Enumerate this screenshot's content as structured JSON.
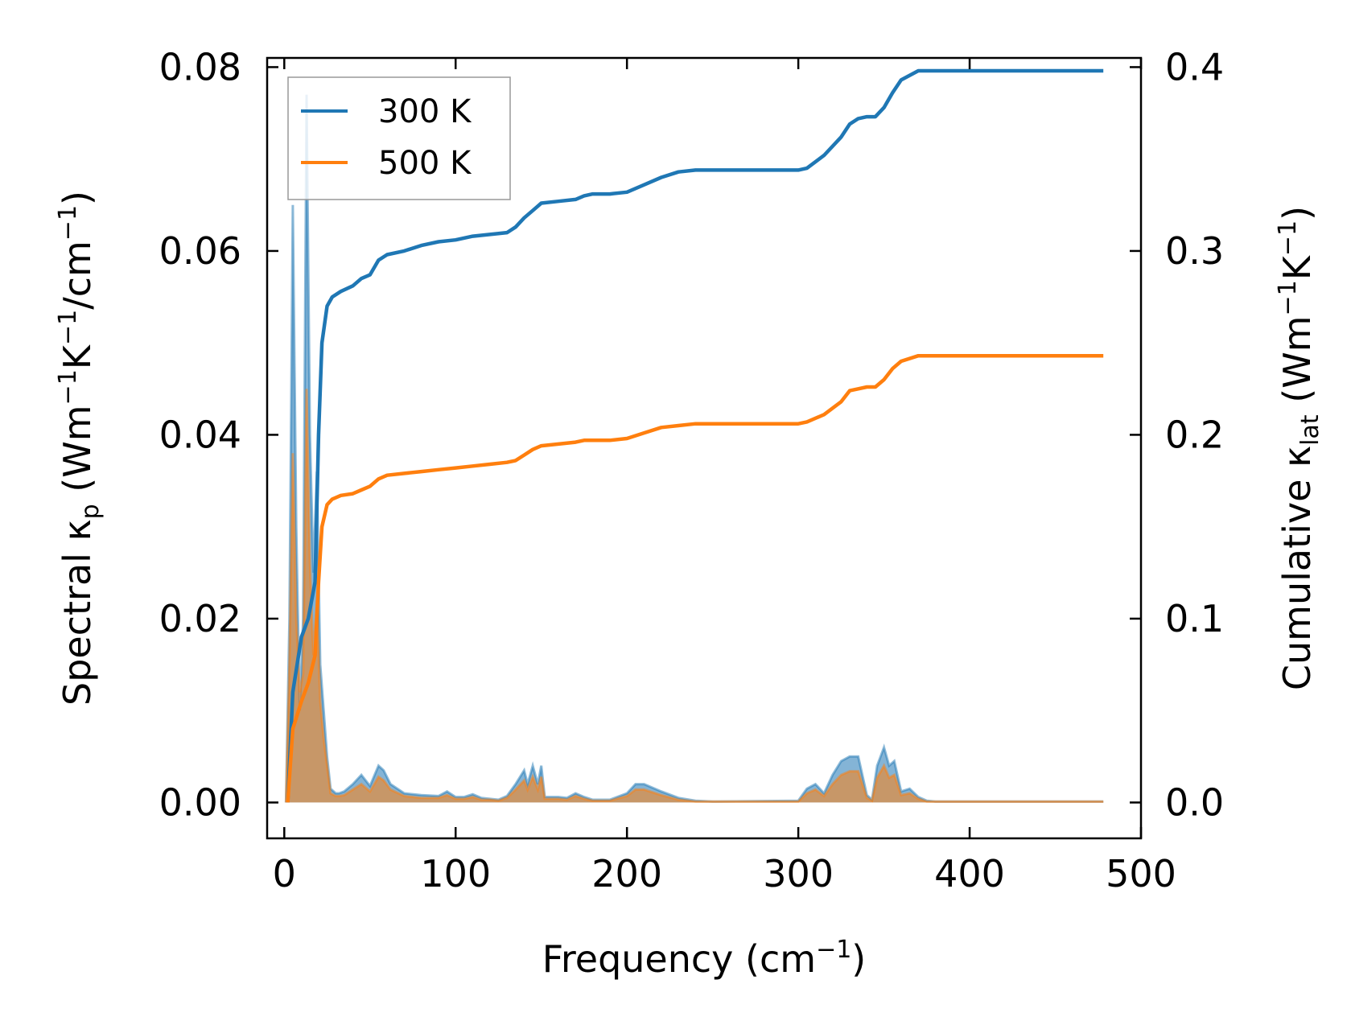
{
  "chart_data": {
    "type": "line",
    "title": "",
    "xlabel_main": "Frequency (cm",
    "xlabel_sup": "−1",
    "xlabel_end": ")",
    "ylabel_left": {
      "main": "Spectral κ",
      "sub": "p",
      "rest1": " (Wm",
      "sup1": "−1",
      "rest2": "K",
      "sup2": "−1",
      "rest3": "/cm",
      "sup3": "−1",
      "rest4": ")"
    },
    "ylabel_right": {
      "main": "Cumulative κ",
      "sub": "lat",
      "rest1": " (Wm",
      "sup1": "−1",
      "rest2": "K",
      "sup2": "−1",
      "rest3": ")"
    },
    "xlim": [
      -10,
      500
    ],
    "ylim_left": [
      -0.0039,
      0.081
    ],
    "ylim_right": [
      -0.0195,
      0.405
    ],
    "x_ticks": [
      0,
      100,
      200,
      300,
      400,
      500
    ],
    "x_tick_labels": [
      "0",
      "100",
      "200",
      "300",
      "400",
      "500"
    ],
    "y_left_ticks": [
      0,
      0.02,
      0.04,
      0.06,
      0.08
    ],
    "y_left_tick_labels": [
      "0.00",
      "0.02",
      "0.04",
      "0.06",
      "0.08"
    ],
    "y_right_ticks": [
      0,
      0.1,
      0.2,
      0.3,
      0.4
    ],
    "y_right_tick_labels": [
      "0.0",
      "0.1",
      "0.2",
      "0.3",
      "0.4"
    ],
    "legend": {
      "position": "upper-left",
      "entries": [
        {
          "name": "300 K",
          "color": "#1f77b4"
        },
        {
          "name": "500 K",
          "color": "#ff7f0e"
        }
      ]
    },
    "colors": {
      "series_300": "#1f77b4",
      "series_500": "#ff7f0e"
    },
    "series": [
      {
        "name": "300 K",
        "axis": "right",
        "kind": "cumulative",
        "color": "#1f77b4",
        "x": [
          2,
          5,
          10,
          14,
          18,
          20,
          22,
          25,
          28,
          33,
          40,
          45,
          50,
          55,
          60,
          70,
          80,
          90,
          100,
          110,
          120,
          130,
          135,
          140,
          145,
          150,
          160,
          170,
          175,
          180,
          190,
          200,
          210,
          220,
          230,
          240,
          250,
          260,
          280,
          300,
          305,
          315,
          325,
          330,
          335,
          340,
          345,
          350,
          355,
          360,
          370,
          380,
          400,
          450,
          478
        ],
        "y": [
          0.0,
          0.06,
          0.09,
          0.1,
          0.12,
          0.2,
          0.25,
          0.27,
          0.275,
          0.278,
          0.281,
          0.285,
          0.287,
          0.295,
          0.298,
          0.3,
          0.303,
          0.305,
          0.306,
          0.308,
          0.309,
          0.31,
          0.313,
          0.318,
          0.322,
          0.326,
          0.327,
          0.328,
          0.33,
          0.331,
          0.331,
          0.332,
          0.336,
          0.34,
          0.343,
          0.344,
          0.344,
          0.344,
          0.344,
          0.344,
          0.345,
          0.352,
          0.362,
          0.369,
          0.372,
          0.373,
          0.373,
          0.378,
          0.386,
          0.393,
          0.398,
          0.398,
          0.398,
          0.398,
          0.398
        ]
      },
      {
        "name": "500 K",
        "axis": "right",
        "kind": "cumulative",
        "color": "#ff7f0e",
        "x": [
          2,
          5,
          10,
          14,
          18,
          20,
          22,
          25,
          28,
          33,
          40,
          45,
          50,
          55,
          60,
          70,
          80,
          90,
          100,
          110,
          120,
          130,
          135,
          140,
          145,
          150,
          160,
          170,
          175,
          180,
          190,
          200,
          210,
          220,
          230,
          240,
          250,
          260,
          280,
          300,
          305,
          315,
          325,
          330,
          335,
          340,
          345,
          350,
          355,
          360,
          370,
          380,
          400,
          450,
          478
        ],
        "y": [
          0.0,
          0.04,
          0.055,
          0.065,
          0.08,
          0.12,
          0.15,
          0.162,
          0.165,
          0.167,
          0.168,
          0.17,
          0.172,
          0.176,
          0.178,
          0.179,
          0.18,
          0.181,
          0.182,
          0.183,
          0.184,
          0.185,
          0.186,
          0.189,
          0.192,
          0.194,
          0.195,
          0.196,
          0.197,
          0.197,
          0.197,
          0.198,
          0.201,
          0.204,
          0.205,
          0.206,
          0.206,
          0.206,
          0.206,
          0.206,
          0.207,
          0.211,
          0.218,
          0.224,
          0.225,
          0.226,
          0.226,
          0.23,
          0.236,
          0.24,
          0.243,
          0.243,
          0.243,
          0.243,
          0.243
        ]
      },
      {
        "name": "300 K",
        "axis": "left",
        "kind": "spectral",
        "color": "#1f77b4",
        "x": [
          1,
          3,
          5,
          7,
          9,
          11,
          13,
          15,
          17,
          19,
          21,
          23,
          25,
          27,
          30,
          32,
          35,
          40,
          45,
          50,
          55,
          58,
          62,
          70,
          80,
          90,
          95,
          100,
          105,
          110,
          115,
          120,
          125,
          130,
          135,
          140,
          142,
          145,
          148,
          150,
          152,
          155,
          160,
          165,
          170,
          175,
          180,
          190,
          200,
          205,
          210,
          220,
          230,
          240,
          250,
          300,
          305,
          310,
          315,
          320,
          325,
          330,
          335,
          340,
          343,
          346,
          350,
          353,
          356,
          360,
          365,
          370,
          375,
          380,
          400,
          450,
          478
        ],
        "y": [
          0.0,
          0.02,
          0.065,
          0.03,
          0.01,
          0.02,
          0.077,
          0.04,
          0.025,
          0.036,
          0.015,
          0.01,
          0.005,
          0.0015,
          0.001,
          0.001,
          0.0012,
          0.002,
          0.003,
          0.0018,
          0.004,
          0.0035,
          0.002,
          0.001,
          0.0008,
          0.0007,
          0.0012,
          0.0006,
          0.0006,
          0.0009,
          0.0005,
          0.0004,
          0.0003,
          0.0007,
          0.002,
          0.0035,
          0.002,
          0.004,
          0.002,
          0.004,
          0.0006,
          0.0006,
          0.0006,
          0.0005,
          0.001,
          0.0006,
          0.0003,
          0.0003,
          0.001,
          0.002,
          0.002,
          0.0012,
          0.0005,
          0.0002,
          0.0001,
          0.0002,
          0.0015,
          0.002,
          0.001,
          0.003,
          0.0045,
          0.005,
          0.005,
          0.0008,
          0.0003,
          0.004,
          0.006,
          0.004,
          0.0045,
          0.0012,
          0.0015,
          0.0006,
          0.0002,
          0.0001,
          0.0001,
          0.0001,
          0.0001
        ]
      },
      {
        "name": "500 K",
        "axis": "left",
        "kind": "spectral",
        "color": "#ff7f0e",
        "x": [
          1,
          3,
          5,
          7,
          9,
          11,
          13,
          15,
          17,
          19,
          21,
          23,
          25,
          27,
          30,
          32,
          35,
          40,
          45,
          50,
          55,
          58,
          62,
          70,
          80,
          90,
          95,
          100,
          105,
          110,
          115,
          120,
          125,
          130,
          135,
          140,
          142,
          145,
          148,
          150,
          152,
          155,
          160,
          165,
          170,
          175,
          180,
          190,
          200,
          205,
          210,
          220,
          230,
          240,
          250,
          300,
          305,
          310,
          315,
          320,
          325,
          330,
          335,
          340,
          343,
          346,
          350,
          353,
          356,
          360,
          365,
          370,
          375,
          380,
          400,
          450,
          478
        ],
        "y": [
          0.0,
          0.015,
          0.038,
          0.02,
          0.012,
          0.014,
          0.045,
          0.026,
          0.016,
          0.022,
          0.011,
          0.007,
          0.004,
          0.001,
          0.0007,
          0.0007,
          0.0008,
          0.0014,
          0.002,
          0.0012,
          0.0028,
          0.0024,
          0.0014,
          0.0007,
          0.0005,
          0.0005,
          0.0008,
          0.0004,
          0.0004,
          0.0006,
          0.0003,
          0.0003,
          0.0002,
          0.0005,
          0.0014,
          0.0024,
          0.0014,
          0.0028,
          0.0014,
          0.0028,
          0.0004,
          0.0004,
          0.0004,
          0.0003,
          0.0007,
          0.0004,
          0.0002,
          0.0002,
          0.0007,
          0.0014,
          0.0014,
          0.0008,
          0.0003,
          0.0001,
          0.0001,
          0.0001,
          0.001,
          0.0014,
          0.0007,
          0.002,
          0.003,
          0.0034,
          0.0034,
          0.0005,
          0.0002,
          0.0027,
          0.004,
          0.0027,
          0.003,
          0.0008,
          0.001,
          0.0004,
          0.0001,
          0.0001,
          0.0001,
          0.0001,
          0.0001
        ]
      }
    ]
  }
}
